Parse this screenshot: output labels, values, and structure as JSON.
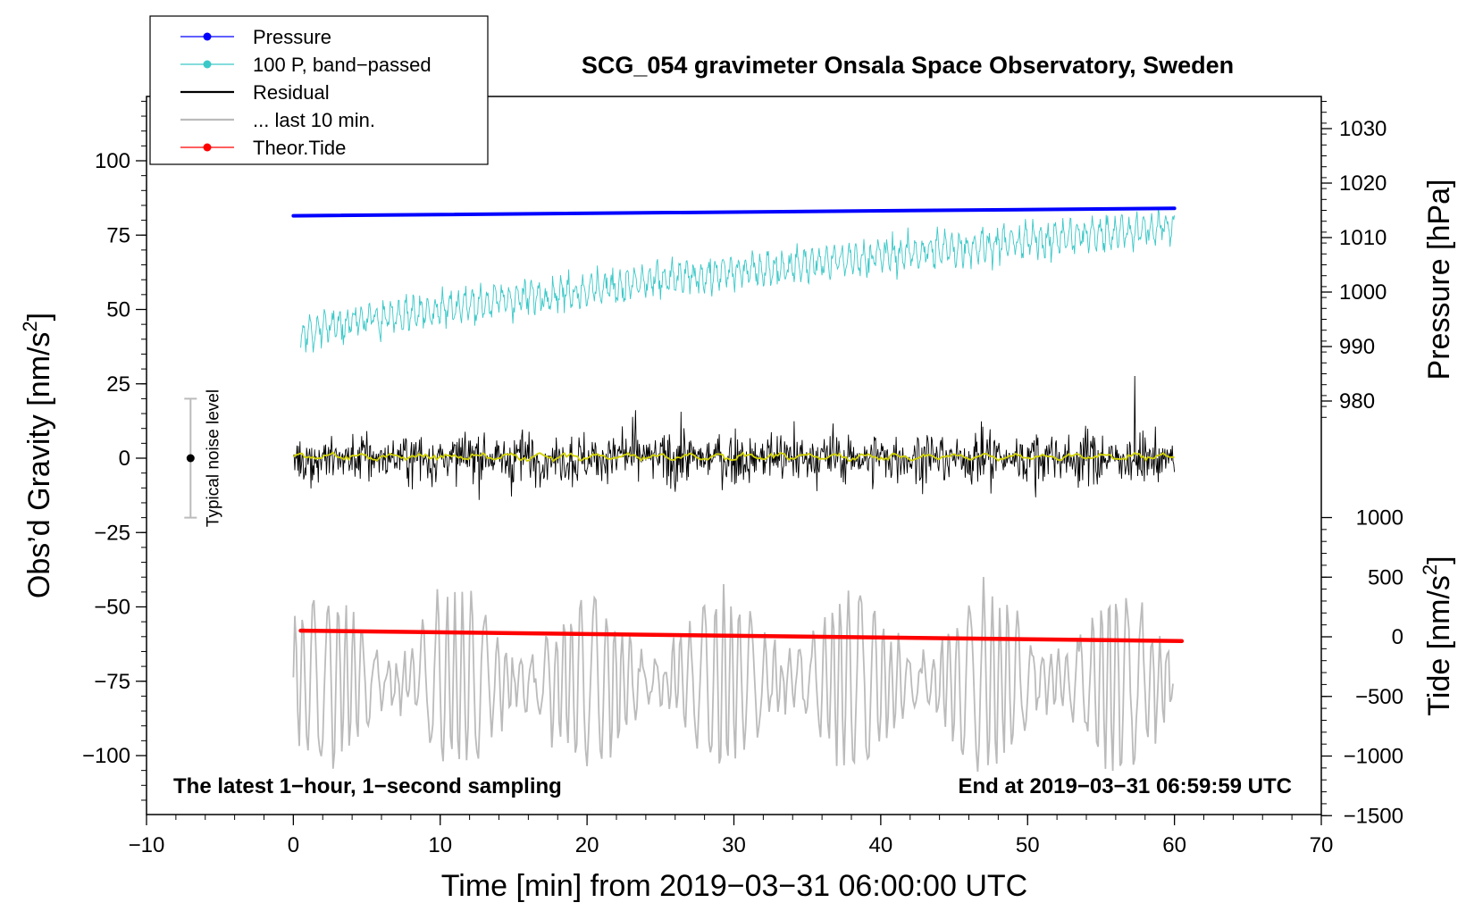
{
  "chart_data": {
    "type": "line",
    "title": "SCG_054 gravimeter Onsala Space Observatory, Sweden",
    "xlabel": "Time [min] from 2019−03−31 06:00:00 UTC",
    "ylabel_left": "Obs’d Gravity [nm/s",
    "ylabel_left_sup": "2",
    "ylabel_left_close": "]",
    "ylabel_right_pressure": "Pressure [hPa]",
    "ylabel_right_tide": "Tide [nm/s",
    "ylabel_right_tide_sup": "2",
    "ylabel_right_tide_close": "]",
    "xlim": [
      -10,
      70
    ],
    "ylim_left": [
      -120,
      122
    ],
    "x_ticks": [
      -10,
      0,
      10,
      20,
      30,
      40,
      50,
      60,
      70
    ],
    "x_tick_labels": [
      "−10",
      "0",
      "10",
      "20",
      "30",
      "40",
      "50",
      "60",
      "70"
    ],
    "y_left_ticks": [
      100,
      75,
      50,
      25,
      0,
      -25,
      -50,
      -75,
      -100
    ],
    "y_left_tick_labels": [
      "100",
      "75",
      "50",
      "25",
      "0",
      "−25",
      "−50",
      "−75",
      "−100"
    ],
    "pressure_axis": {
      "ticks": [
        1030,
        1020,
        1010,
        1000,
        990,
        980
      ],
      "tick_labels": [
        "1030",
        "1020",
        "1010",
        "1000",
        "990",
        "980"
      ],
      "range": [
        1014.0,
        1014.5
      ]
    },
    "tide_axis": {
      "ticks": [
        1000,
        500,
        0,
        -500,
        -1000,
        -1500
      ],
      "tick_labels": [
        "1000",
        "500",
        "0",
        "−500",
        "−1000",
        "−1500"
      ]
    },
    "legend": [
      {
        "label": "Pressure",
        "color": "#0000ff",
        "marker": true
      },
      {
        "label": "100 P, band−passed",
        "color": "#3cc8c8",
        "marker": true
      },
      {
        "label": "Residual",
        "color": "#000000",
        "marker": false
      },
      {
        "label": "... last 10 min.",
        "color": "#bbbbbb",
        "marker": false
      },
      {
        "label": "Theor.Tide",
        "color": "#ff0000",
        "marker": true
      }
    ],
    "series": [
      {
        "name": "Pressure",
        "color": "#0000ff",
        "x": [
          0.0,
          60.0
        ],
        "y": [
          81.5,
          84.0
        ]
      },
      {
        "name": "100 P, band−passed",
        "color": "#3cc8c8",
        "x_range": [
          0.5,
          60.0
        ],
        "trend": [
          42,
          78
        ],
        "amplitude": 8
      },
      {
        "name": "Residual",
        "color": "#000000",
        "x_range": [
          0.0,
          60.0
        ],
        "mean": 0,
        "amplitude": 22
      },
      {
        "name": "smoothed residual",
        "color": "#d2d200",
        "x_range": [
          0.0,
          60.0
        ],
        "mean": 0.5
      },
      {
        "name": "... last 10 min.",
        "color": "#bbbbbb",
        "x_range": [
          0.0,
          60.0
        ],
        "center": -75,
        "amplitude": 25
      },
      {
        "name": "Theor.Tide",
        "color": "#ff0000",
        "x": [
          0.5,
          60.5
        ],
        "y": [
          -58,
          -61.5
        ]
      }
    ],
    "noise_bar": {
      "label": "Typical noise level",
      "x": -7,
      "center": 0,
      "half_range": 20
    },
    "annotations": {
      "left": "The latest 1−hour, 1−second sampling",
      "right": "End at 2019−03−31 06:59:59 UTC"
    }
  },
  "colors": {
    "pressure": "#0000ff",
    "bandpassed": "#3cc8c8",
    "residual": "#000000",
    "last10": "#bbbbbb",
    "tide": "#ff0000",
    "smoothed": "#d2d200",
    "noise": "#bbbbbb"
  }
}
